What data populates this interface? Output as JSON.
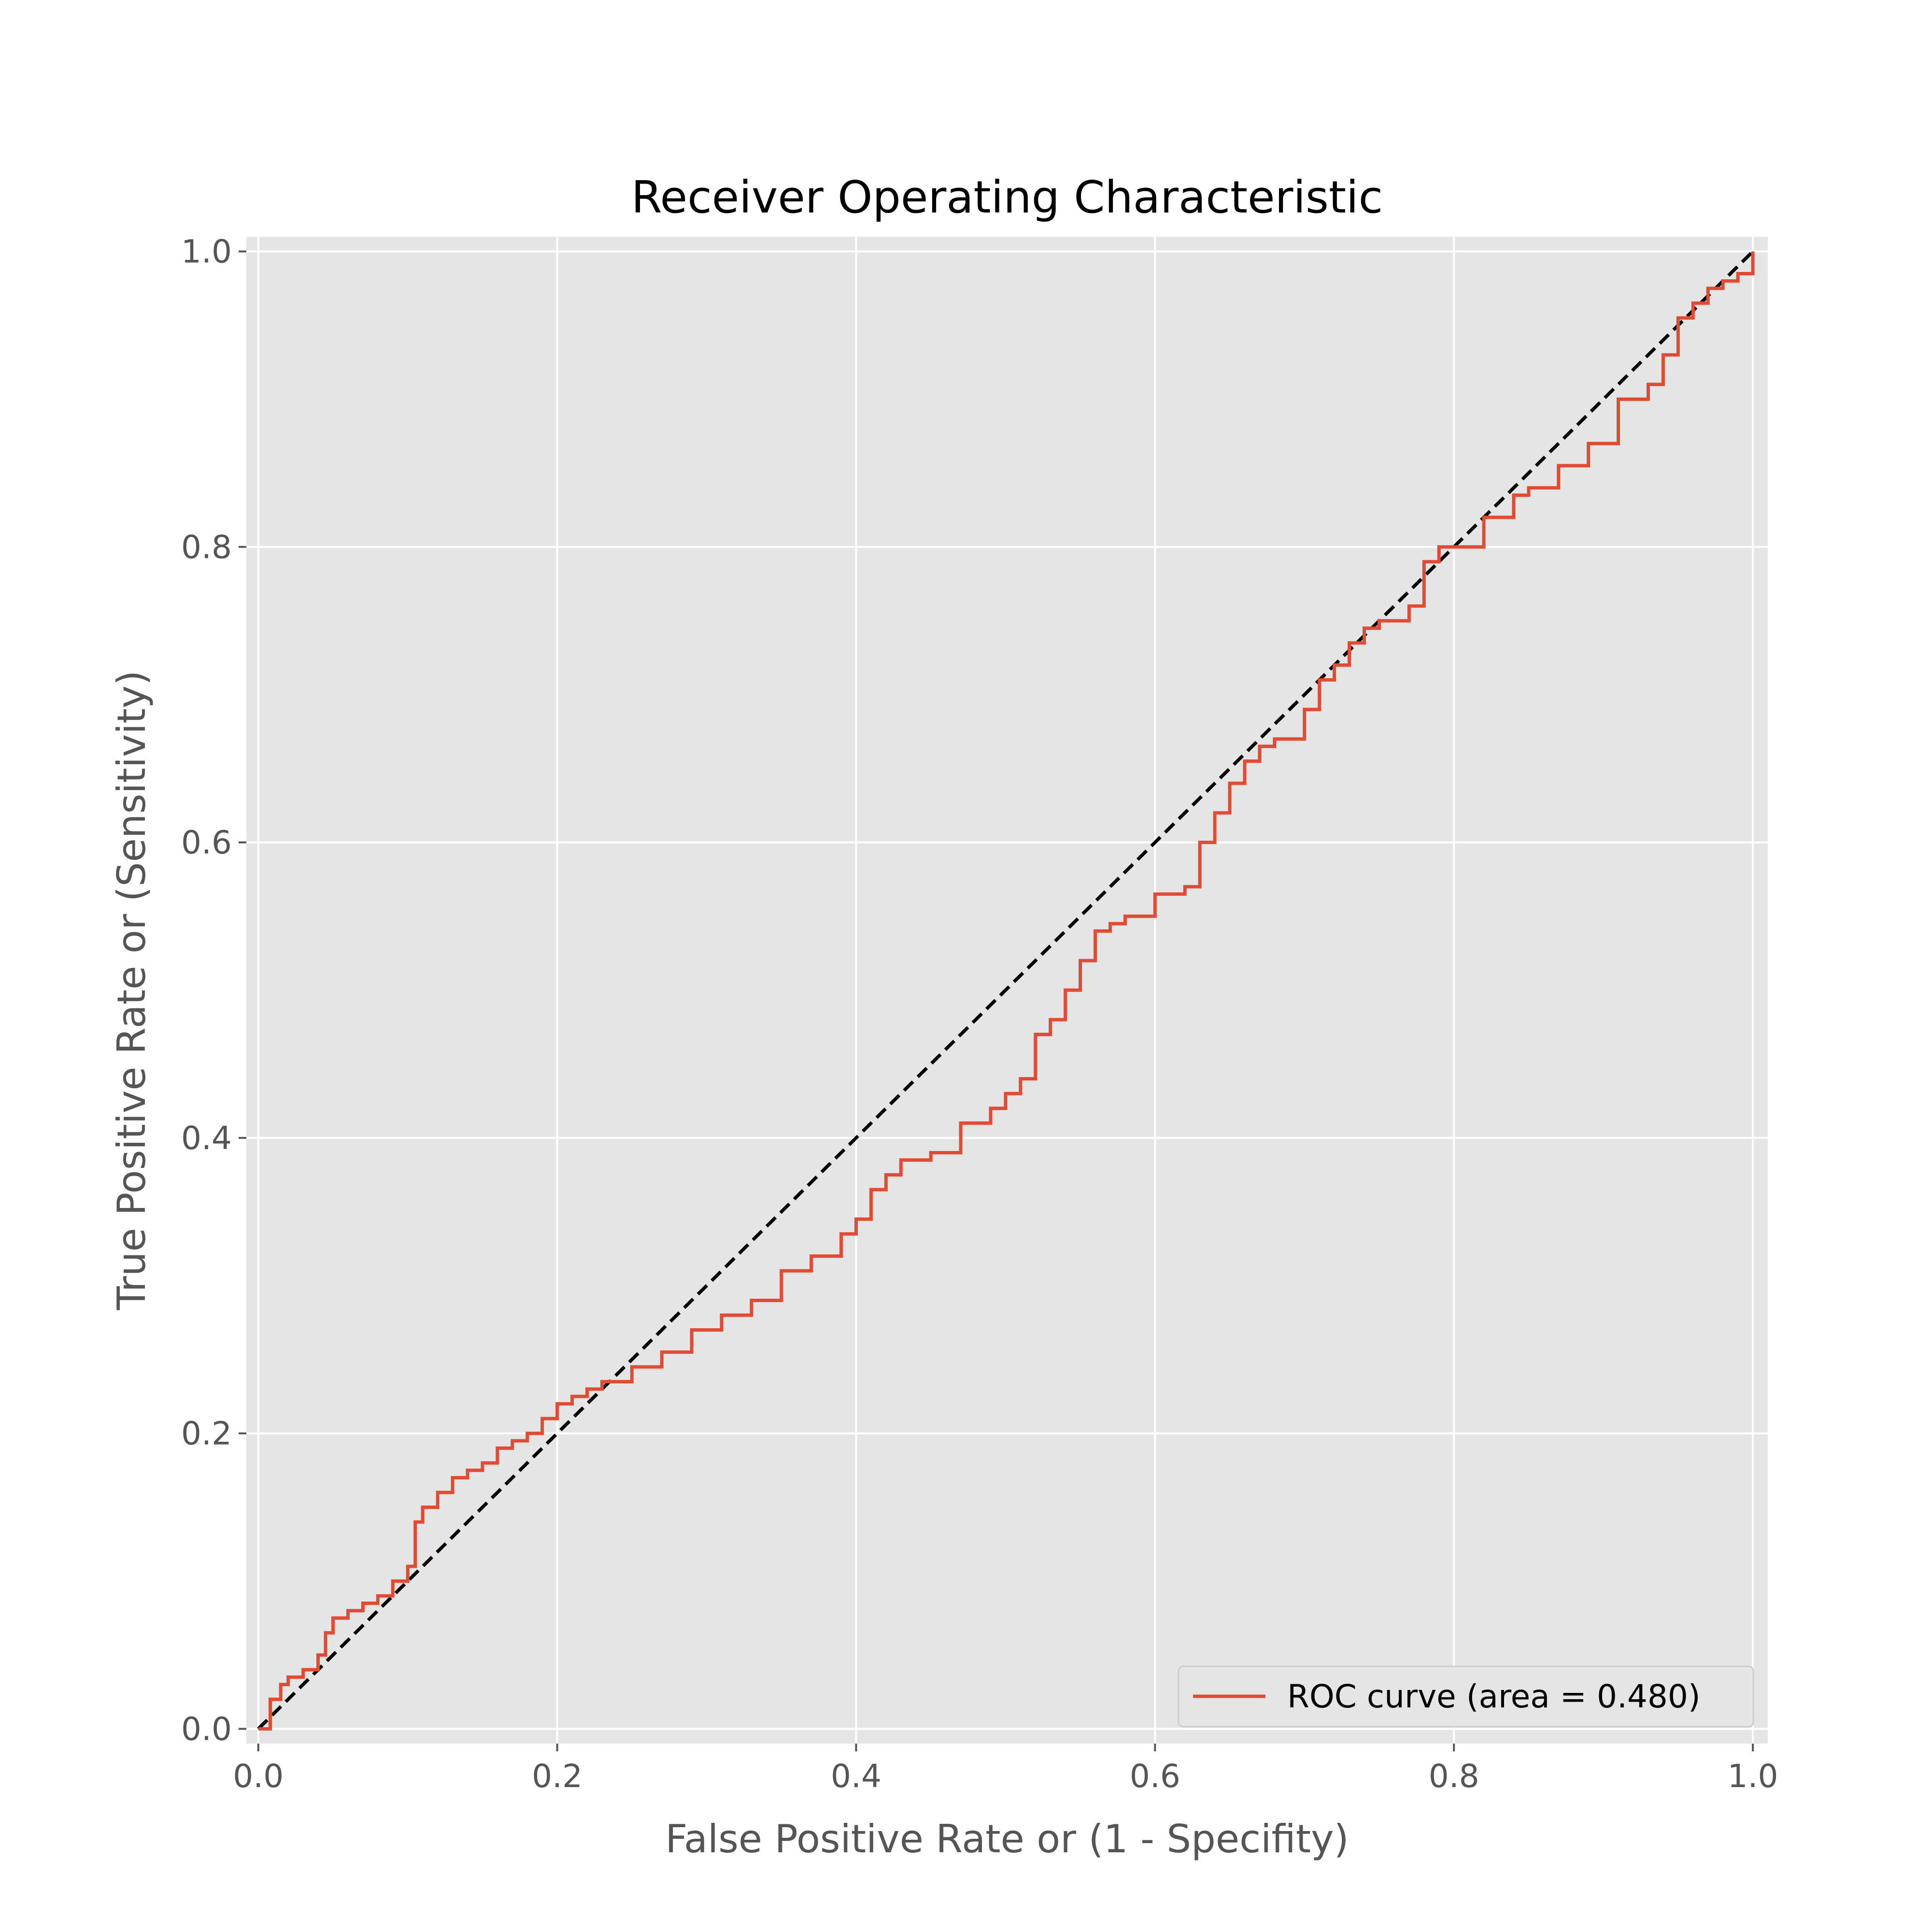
{
  "chart_data": {
    "type": "line",
    "title": "Receiver Operating Characteristic",
    "xlabel": "False Positive Rate or (1 - Specifity)",
    "ylabel": "True Positive Rate or (Sensitivity)",
    "xlim": [
      -0.008,
      1.01
    ],
    "ylim": [
      -0.01,
      1.01
    ],
    "xticks": [
      "0.0",
      "0.2",
      "0.4",
      "0.6",
      "0.8",
      "1.0"
    ],
    "yticks": [
      "0.0",
      "0.2",
      "0.4",
      "0.6",
      "0.8",
      "1.0"
    ],
    "grid": true,
    "legend_position": "lower-right",
    "series": [
      {
        "name": "ROC curve (area = 0.480)",
        "color": "#e24a33",
        "style": "step",
        "x": [
          0.0,
          0.008,
          0.015,
          0.02,
          0.03,
          0.04,
          0.045,
          0.05,
          0.06,
          0.07,
          0.08,
          0.09,
          0.1,
          0.105,
          0.11,
          0.12,
          0.13,
          0.14,
          0.15,
          0.16,
          0.17,
          0.18,
          0.19,
          0.2,
          0.21,
          0.22,
          0.23,
          0.25,
          0.27,
          0.29,
          0.31,
          0.33,
          0.35,
          0.37,
          0.39,
          0.4,
          0.41,
          0.42,
          0.43,
          0.45,
          0.47,
          0.49,
          0.5,
          0.51,
          0.52,
          0.53,
          0.54,
          0.55,
          0.56,
          0.57,
          0.58,
          0.6,
          0.62,
          0.63,
          0.64,
          0.65,
          0.66,
          0.67,
          0.68,
          0.7,
          0.71,
          0.72,
          0.73,
          0.74,
          0.75,
          0.77,
          0.78,
          0.79,
          0.8,
          0.82,
          0.84,
          0.85,
          0.87,
          0.89,
          0.91,
          0.92,
          0.93,
          0.94,
          0.95,
          0.96,
          0.97,
          0.98,
          0.99,
          1.0,
          1.0
        ],
        "y": [
          0.0,
          0.02,
          0.03,
          0.035,
          0.04,
          0.05,
          0.065,
          0.075,
          0.08,
          0.085,
          0.09,
          0.1,
          0.11,
          0.14,
          0.15,
          0.16,
          0.17,
          0.175,
          0.18,
          0.19,
          0.195,
          0.2,
          0.21,
          0.22,
          0.225,
          0.23,
          0.235,
          0.245,
          0.255,
          0.27,
          0.28,
          0.29,
          0.31,
          0.32,
          0.335,
          0.345,
          0.365,
          0.375,
          0.385,
          0.39,
          0.41,
          0.42,
          0.43,
          0.44,
          0.47,
          0.48,
          0.5,
          0.52,
          0.54,
          0.545,
          0.55,
          0.565,
          0.57,
          0.6,
          0.62,
          0.64,
          0.655,
          0.665,
          0.67,
          0.69,
          0.71,
          0.72,
          0.735,
          0.745,
          0.75,
          0.76,
          0.79,
          0.8,
          0.8,
          0.82,
          0.835,
          0.84,
          0.855,
          0.87,
          0.9,
          0.9,
          0.91,
          0.93,
          0.955,
          0.965,
          0.975,
          0.98,
          0.985,
          0.99,
          1.0
        ]
      },
      {
        "name": "",
        "color": "#000000",
        "style": "dashed",
        "x": [
          0,
          1
        ],
        "y": [
          0,
          1
        ]
      }
    ]
  }
}
